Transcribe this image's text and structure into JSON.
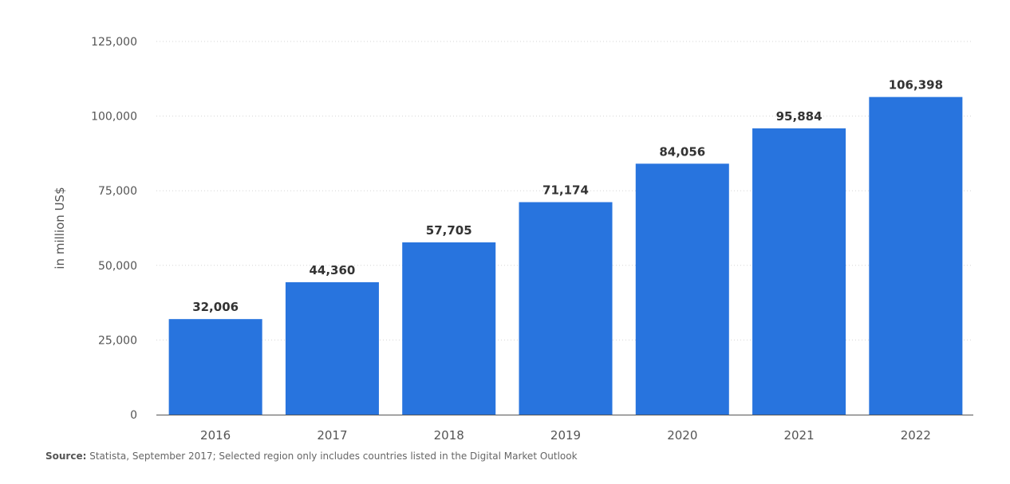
{
  "chart_data": {
    "type": "bar",
    "categories": [
      "2016",
      "2017",
      "2018",
      "2019",
      "2020",
      "2021",
      "2022"
    ],
    "values": [
      32006,
      44360,
      57705,
      71174,
      84056,
      95884,
      106398
    ],
    "value_labels": [
      "32,006",
      "44,360",
      "57,705",
      "71,174",
      "84,056",
      "95,884",
      "106,398"
    ],
    "title": "",
    "xlabel": "",
    "ylabel": "in million US$",
    "ylim": [
      0,
      125000
    ],
    "yticks": [
      0,
      25000,
      50000,
      75000,
      100000,
      125000
    ],
    "ytick_labels": [
      "0",
      "25,000",
      "50,000",
      "75,000",
      "100,000",
      "125,000"
    ],
    "grid": true,
    "legend": "none"
  },
  "colors": {
    "bar": "#2874de",
    "grid": "#d5d5d5",
    "axis": "#555555",
    "tick_text": "#555555",
    "value_label": "#333333"
  },
  "footer": {
    "source_label": "Source:",
    "source_text": "Statista, September 2017; Selected region only includes countries listed in the Digital Market Outlook"
  }
}
